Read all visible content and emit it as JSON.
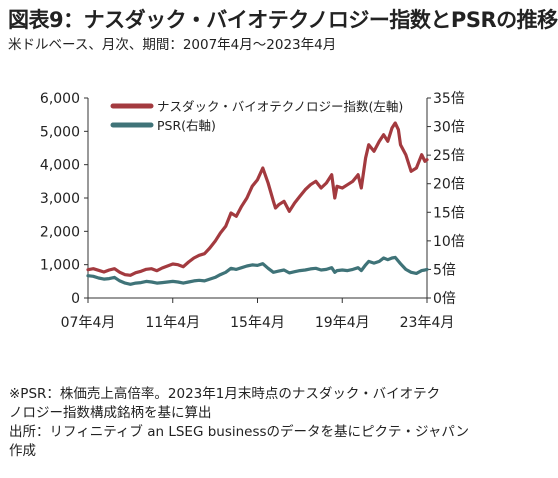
{
  "title": "図表9：ナスダック・バイオテクノロジー指数とPSRの推移",
  "subtitle": "米ドルベース、月次、期間：2007年4月～2023年4月",
  "notes": [
    "※PSR：株価売上高倍率。2023年1月末時点のナスダック・バイオテク",
    "ノロジー指数構成銘柄を基に算出",
    "出所：リフィニティブ an LSEG businessのデータを基にピクテ・ジャパン",
    "作成"
  ],
  "colors": {
    "index": "#a33a3f",
    "psr": "#3f7378",
    "axis": "#333333"
  },
  "chart_data": {
    "type": "line",
    "x_tick_labels": [
      "07年4月",
      "11年4月",
      "15年4月",
      "19年4月",
      "23年4月"
    ],
    "x_tick_dates": [
      2007.25,
      2011.25,
      2015.25,
      2019.25,
      2023.25
    ],
    "x_range": [
      2007.25,
      2023.25
    ],
    "y_left": {
      "range": [
        0,
        6000
      ],
      "ticks": [
        0,
        1000,
        2000,
        3000,
        4000,
        5000,
        6000
      ],
      "tick_labels": [
        "0",
        "1,000",
        "2,000",
        "3,000",
        "4,000",
        "5,000",
        "6,000"
      ]
    },
    "y_right": {
      "range": [
        0,
        35
      ],
      "ticks": [
        0,
        5,
        10,
        15,
        20,
        25,
        30,
        35
      ],
      "tick_labels": [
        "0倍",
        "5倍",
        "10倍",
        "15倍",
        "20倍",
        "25倍",
        "30倍",
        "35倍"
      ]
    },
    "legend_position": "top-right",
    "series": [
      {
        "name": "ナスダック・バイオテクノロジー指数(左軸)",
        "axis": "left",
        "points": [
          [
            2007.25,
            850
          ],
          [
            2007.5,
            880
          ],
          [
            2007.75,
            830
          ],
          [
            2008.0,
            780
          ],
          [
            2008.25,
            840
          ],
          [
            2008.5,
            880
          ],
          [
            2008.75,
            770
          ],
          [
            2009.0,
            700
          ],
          [
            2009.25,
            680
          ],
          [
            2009.5,
            760
          ],
          [
            2009.75,
            800
          ],
          [
            2010.0,
            860
          ],
          [
            2010.25,
            880
          ],
          [
            2010.5,
            820
          ],
          [
            2010.75,
            900
          ],
          [
            2011.0,
            960
          ],
          [
            2011.25,
            1020
          ],
          [
            2011.5,
            1000
          ],
          [
            2011.75,
            940
          ],
          [
            2012.0,
            1080
          ],
          [
            2012.25,
            1200
          ],
          [
            2012.5,
            1280
          ],
          [
            2012.75,
            1330
          ],
          [
            2013.0,
            1500
          ],
          [
            2013.25,
            1700
          ],
          [
            2013.5,
            1950
          ],
          [
            2013.75,
            2150
          ],
          [
            2014.0,
            2550
          ],
          [
            2014.25,
            2450
          ],
          [
            2014.5,
            2750
          ],
          [
            2014.75,
            3000
          ],
          [
            2015.0,
            3350
          ],
          [
            2015.25,
            3550
          ],
          [
            2015.5,
            3900
          ],
          [
            2015.75,
            3450
          ],
          [
            2016.0,
            2900
          ],
          [
            2016.1,
            2700
          ],
          [
            2016.25,
            2800
          ],
          [
            2016.5,
            2900
          ],
          [
            2016.75,
            2600
          ],
          [
            2017.0,
            2850
          ],
          [
            2017.25,
            3050
          ],
          [
            2017.5,
            3250
          ],
          [
            2017.75,
            3400
          ],
          [
            2018.0,
            3500
          ],
          [
            2018.25,
            3300
          ],
          [
            2018.5,
            3450
          ],
          [
            2018.75,
            3700
          ],
          [
            2018.9,
            3000
          ],
          [
            2019.0,
            3350
          ],
          [
            2019.25,
            3300
          ],
          [
            2019.5,
            3400
          ],
          [
            2019.75,
            3500
          ],
          [
            2020.0,
            3700
          ],
          [
            2020.15,
            3300
          ],
          [
            2020.35,
            4200
          ],
          [
            2020.5,
            4600
          ],
          [
            2020.75,
            4400
          ],
          [
            2021.0,
            4700
          ],
          [
            2021.2,
            4900
          ],
          [
            2021.4,
            4700
          ],
          [
            2021.6,
            5100
          ],
          [
            2021.75,
            5250
          ],
          [
            2021.9,
            5050
          ],
          [
            2022.0,
            4600
          ],
          [
            2022.25,
            4300
          ],
          [
            2022.5,
            3800
          ],
          [
            2022.75,
            3900
          ],
          [
            2023.0,
            4300
          ],
          [
            2023.15,
            4100
          ],
          [
            2023.25,
            4150
          ]
        ]
      },
      {
        "name": "PSR(右軸)",
        "axis": "right",
        "points": [
          [
            2007.25,
            3.9
          ],
          [
            2007.5,
            3.8
          ],
          [
            2007.75,
            3.5
          ],
          [
            2008.0,
            3.3
          ],
          [
            2008.25,
            3.4
          ],
          [
            2008.5,
            3.6
          ],
          [
            2008.75,
            3.0
          ],
          [
            2009.0,
            2.6
          ],
          [
            2009.25,
            2.4
          ],
          [
            2009.5,
            2.6
          ],
          [
            2009.75,
            2.7
          ],
          [
            2010.0,
            2.9
          ],
          [
            2010.25,
            2.8
          ],
          [
            2010.5,
            2.6
          ],
          [
            2010.75,
            2.7
          ],
          [
            2011.0,
            2.8
          ],
          [
            2011.25,
            2.9
          ],
          [
            2011.5,
            2.8
          ],
          [
            2011.75,
            2.6
          ],
          [
            2012.0,
            2.8
          ],
          [
            2012.25,
            3.0
          ],
          [
            2012.5,
            3.1
          ],
          [
            2012.75,
            3.0
          ],
          [
            2013.0,
            3.3
          ],
          [
            2013.25,
            3.6
          ],
          [
            2013.5,
            4.1
          ],
          [
            2013.75,
            4.5
          ],
          [
            2014.0,
            5.2
          ],
          [
            2014.25,
            5.0
          ],
          [
            2014.5,
            5.3
          ],
          [
            2014.75,
            5.6
          ],
          [
            2015.0,
            5.8
          ],
          [
            2015.25,
            5.7
          ],
          [
            2015.5,
            6.0
          ],
          [
            2015.75,
            5.2
          ],
          [
            2016.0,
            4.5
          ],
          [
            2016.25,
            4.7
          ],
          [
            2016.5,
            4.9
          ],
          [
            2016.75,
            4.4
          ],
          [
            2017.0,
            4.6
          ],
          [
            2017.25,
            4.8
          ],
          [
            2017.5,
            4.9
          ],
          [
            2017.75,
            5.1
          ],
          [
            2018.0,
            5.2
          ],
          [
            2018.25,
            4.9
          ],
          [
            2018.5,
            5.0
          ],
          [
            2018.75,
            5.3
          ],
          [
            2018.9,
            4.5
          ],
          [
            2019.0,
            4.8
          ],
          [
            2019.25,
            4.9
          ],
          [
            2019.5,
            4.8
          ],
          [
            2019.75,
            5.0
          ],
          [
            2020.0,
            5.3
          ],
          [
            2020.15,
            4.8
          ],
          [
            2020.35,
            5.8
          ],
          [
            2020.5,
            6.4
          ],
          [
            2020.75,
            6.1
          ],
          [
            2021.0,
            6.4
          ],
          [
            2021.2,
            7.0
          ],
          [
            2021.4,
            6.7
          ],
          [
            2021.6,
            7.0
          ],
          [
            2021.75,
            7.1
          ],
          [
            2022.0,
            6.0
          ],
          [
            2022.25,
            5.0
          ],
          [
            2022.5,
            4.5
          ],
          [
            2022.75,
            4.3
          ],
          [
            2023.0,
            4.8
          ],
          [
            2023.15,
            4.9
          ],
          [
            2023.25,
            5.0
          ]
        ]
      }
    ]
  }
}
